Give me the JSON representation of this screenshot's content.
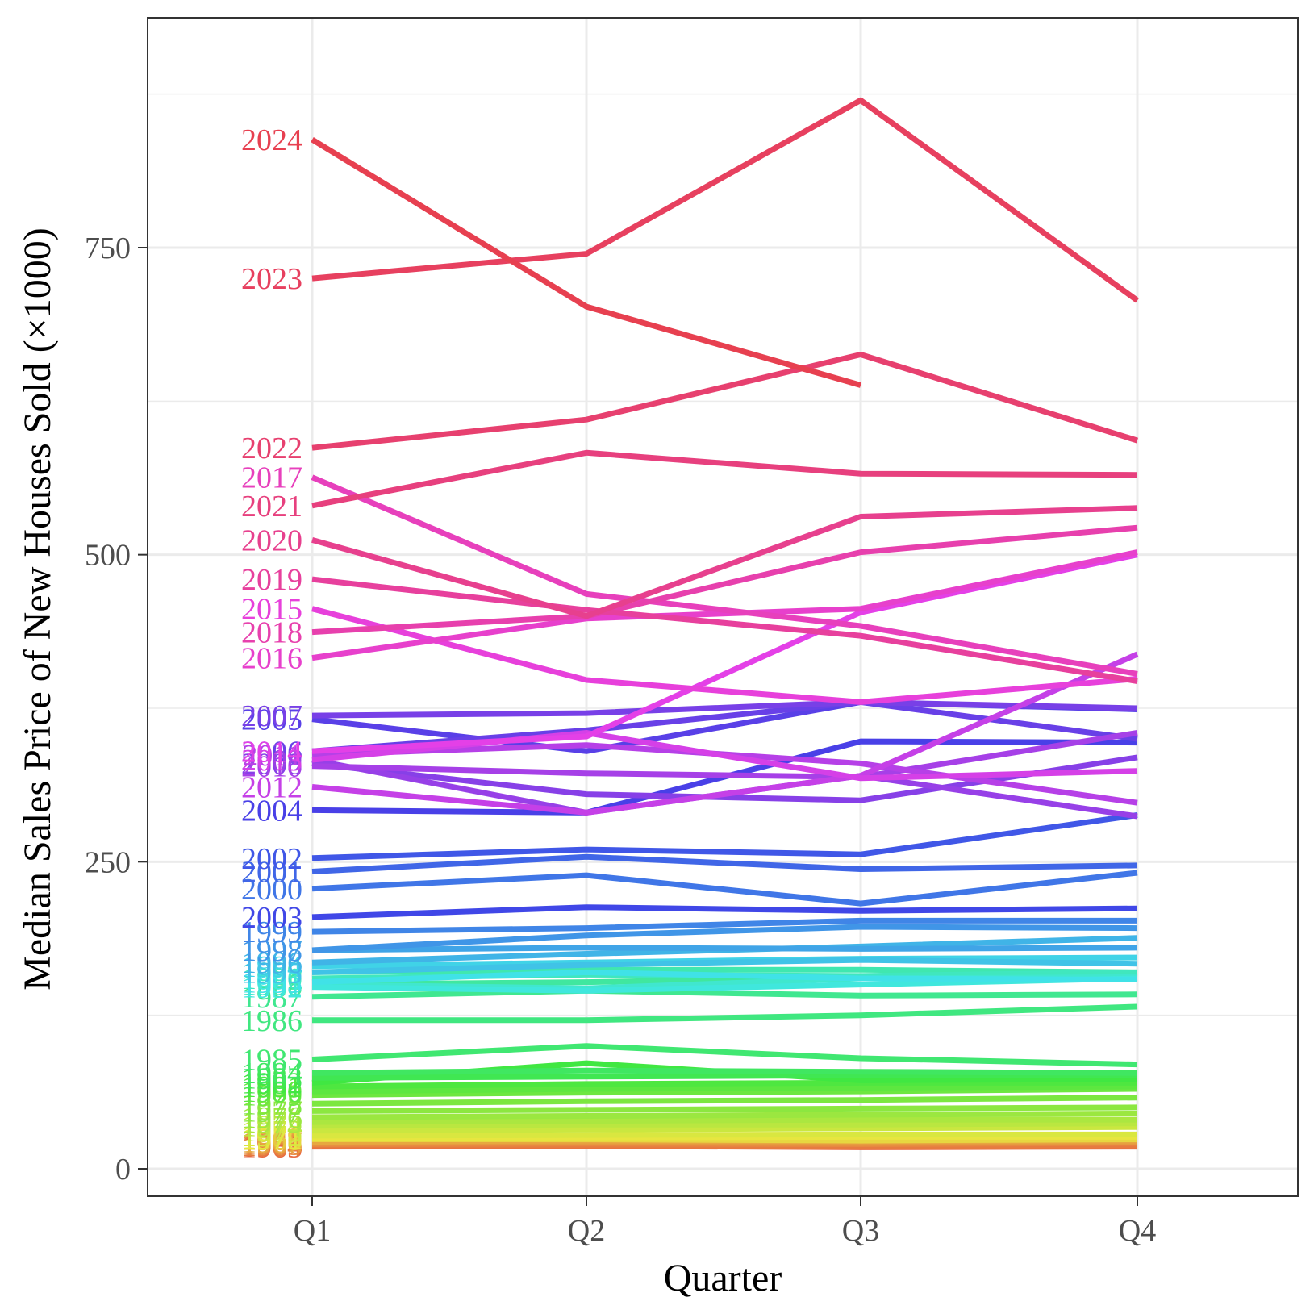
{
  "chart_data": {
    "type": "line",
    "title": "",
    "xlabel": "Quarter",
    "ylabel": "Median Sales Price of New Houses Sold (×1000)",
    "categories": [
      "Q1",
      "Q2",
      "Q3",
      "Q4"
    ],
    "yticks": [
      0,
      250,
      500,
      750
    ],
    "ylim": [
      -25,
      940
    ],
    "grid": true,
    "legend": "none (series labelled at Q1 with year)",
    "series": [
      {
        "name": "1963",
        "values": [
          18,
          18.5,
          17.5,
          18
        ]
      },
      {
        "name": "1964",
        "values": [
          19,
          19,
          18.5,
          19
        ]
      },
      {
        "name": "1965",
        "values": [
          20,
          20.5,
          20,
          21
        ]
      },
      {
        "name": "1966",
        "values": [
          21,
          21.5,
          21,
          22
        ]
      },
      {
        "name": "1967",
        "values": [
          22,
          23,
          22.5,
          23
        ]
      },
      {
        "name": "1968",
        "values": [
          24,
          25,
          24.5,
          25
        ]
      },
      {
        "name": "1969",
        "values": [
          25,
          26,
          25.5,
          26
        ]
      },
      {
        "name": "1970",
        "values": [
          24,
          24,
          23,
          24
        ]
      },
      {
        "name": "1971",
        "values": [
          25,
          25.5,
          26,
          26
        ]
      },
      {
        "name": "1972",
        "values": [
          27,
          27.5,
          28,
          28
        ]
      },
      {
        "name": "1973",
        "values": [
          31,
          32,
          33,
          34
        ]
      },
      {
        "name": "1974",
        "values": [
          35,
          36,
          36,
          37
        ]
      },
      {
        "name": "1975",
        "values": [
          38,
          39,
          40,
          40
        ]
      },
      {
        "name": "1976",
        "values": [
          42,
          43,
          44,
          45
        ]
      },
      {
        "name": "1977",
        "values": [
          47,
          48,
          49,
          50
        ]
      },
      {
        "name": "1978",
        "values": [
          53,
          55,
          56,
          58
        ]
      },
      {
        "name": "1979",
        "values": [
          60,
          62,
          63,
          65
        ]
      },
      {
        "name": "1980",
        "values": [
          63,
          65,
          66,
          67
        ]
      },
      {
        "name": "1981",
        "values": [
          67,
          69,
          70,
          70
        ]
      },
      {
        "name": "1982",
        "values": [
          70,
          86,
          72,
          73
        ]
      },
      {
        "name": "1983",
        "values": [
          74,
          75,
          76,
          76
        ]
      },
      {
        "name": "1984",
        "values": [
          78,
          80,
          79,
          78
        ]
      },
      {
        "name": "1985",
        "values": [
          89,
          100,
          90,
          85
        ]
      },
      {
        "name": "1986",
        "values": [
          121,
          121,
          125,
          132
        ]
      },
      {
        "name": "1987",
        "values": [
          140,
          145,
          141,
          142
        ]
      },
      {
        "name": "1988",
        "values": [
          150,
          152,
          156,
          159
        ]
      },
      {
        "name": "1989",
        "values": [
          160,
          162,
          162,
          160
        ]
      },
      {
        "name": "1990",
        "values": [
          155,
          158,
          157,
          160
        ]
      },
      {
        "name": "1991",
        "values": [
          150,
          147,
          155,
          156
        ]
      },
      {
        "name": "1992",
        "values": [
          148,
          145,
          150,
          155
        ]
      },
      {
        "name": "1993",
        "values": [
          152,
          160,
          155,
          154
        ]
      },
      {
        "name": "1994",
        "values": [
          165,
          168,
          171,
          172
        ]
      },
      {
        "name": "1995",
        "values": [
          160,
          166,
          170,
          167
        ]
      },
      {
        "name": "1996",
        "values": [
          168,
          175,
          181,
          188
        ]
      },
      {
        "name": "1997",
        "values": [
          178,
          180,
          179,
          180
        ]
      },
      {
        "name": "1998",
        "values": [
          178,
          190,
          197,
          196
        ]
      },
      {
        "name": "1999",
        "values": [
          193,
          196,
          202,
          202
        ]
      },
      {
        "name": "2000",
        "values": [
          228,
          239,
          216,
          241
        ]
      },
      {
        "name": "2001",
        "values": [
          242,
          254,
          244,
          247
        ]
      },
      {
        "name": "2002",
        "values": [
          253,
          260,
          256,
          288
        ]
      },
      {
        "name": "2003",
        "values": [
          205,
          213,
          210,
          212
        ]
      },
      {
        "name": "2004",
        "values": [
          292,
          290,
          348,
          347
        ]
      },
      {
        "name": "2005",
        "values": [
          366,
          340,
          380,
          374
        ]
      },
      {
        "name": "2006",
        "values": [
          340,
          357,
          380,
          350
        ]
      },
      {
        "name": "2007",
        "values": [
          369,
          371,
          380,
          375
        ]
      },
      {
        "name": "2008",
        "values": [
          330,
          305,
          300,
          335
        ]
      },
      {
        "name": "2009",
        "values": [
          333,
          290,
          320,
          287
        ]
      },
      {
        "name": "2010",
        "values": [
          328,
          322,
          319,
          355
        ]
      },
      {
        "name": "2011",
        "values": [
          337,
          345,
          330,
          298
        ]
      },
      {
        "name": "2012",
        "values": [
          311,
          290,
          320,
          419
        ]
      },
      {
        "name": "2013",
        "values": [
          333,
          355,
          318,
          324
        ]
      },
      {
        "name": "2014",
        "values": [
          340,
          352,
          453,
          500
        ]
      },
      {
        "name": "2015",
        "values": [
          456,
          398,
          380,
          399
        ]
      },
      {
        "name": "2016",
        "values": [
          416,
          448,
          456,
          502
        ]
      },
      {
        "name": "2017",
        "values": [
          563,
          468,
          442,
          403
        ]
      },
      {
        "name": "2018",
        "values": [
          437,
          450,
          502,
          522
        ]
      },
      {
        "name": "2019",
        "values": [
          480,
          455,
          434,
          397
        ]
      },
      {
        "name": "2020",
        "values": [
          512,
          450,
          531,
          538
        ]
      },
      {
        "name": "2021",
        "values": [
          540,
          583,
          566,
          565
        ]
      },
      {
        "name": "2022",
        "values": [
          587,
          610,
          663,
          593
        ]
      },
      {
        "name": "2023",
        "values": [
          725,
          745,
          870,
          707
        ]
      },
      {
        "name": "2024",
        "values": [
          838,
          702,
          638,
          null
        ]
      }
    ]
  },
  "colors": {
    "grid": "#ebebeb",
    "panel_border": "#333333",
    "background": "#ffffff"
  }
}
